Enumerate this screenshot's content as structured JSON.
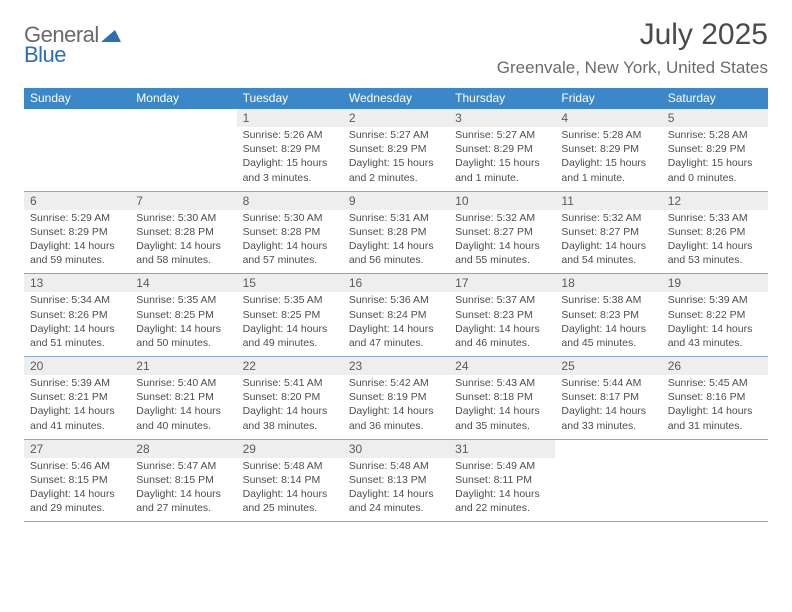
{
  "logo": {
    "general": "General",
    "blue": "Blue"
  },
  "title": "July 2025",
  "location": "Greenvale, New York, United States",
  "colors": {
    "header_bg": "#3c87c7",
    "header_text": "#ffffff",
    "daynum_bg": "#eeeeee",
    "text": "#4e4e4e",
    "divider": "#8aa8c4",
    "logo_gray": "#6a6a6a",
    "logo_blue": "#2b6fb5"
  },
  "day_names": [
    "Sunday",
    "Monday",
    "Tuesday",
    "Wednesday",
    "Thursday",
    "Friday",
    "Saturday"
  ],
  "weeks": [
    [
      {
        "num": "",
        "lines": []
      },
      {
        "num": "",
        "lines": []
      },
      {
        "num": "1",
        "lines": [
          "Sunrise: 5:26 AM",
          "Sunset: 8:29 PM",
          "Daylight: 15 hours",
          "and 3 minutes."
        ]
      },
      {
        "num": "2",
        "lines": [
          "Sunrise: 5:27 AM",
          "Sunset: 8:29 PM",
          "Daylight: 15 hours",
          "and 2 minutes."
        ]
      },
      {
        "num": "3",
        "lines": [
          "Sunrise: 5:27 AM",
          "Sunset: 8:29 PM",
          "Daylight: 15 hours",
          "and 1 minute."
        ]
      },
      {
        "num": "4",
        "lines": [
          "Sunrise: 5:28 AM",
          "Sunset: 8:29 PM",
          "Daylight: 15 hours",
          "and 1 minute."
        ]
      },
      {
        "num": "5",
        "lines": [
          "Sunrise: 5:28 AM",
          "Sunset: 8:29 PM",
          "Daylight: 15 hours",
          "and 0 minutes."
        ]
      }
    ],
    [
      {
        "num": "6",
        "lines": [
          "Sunrise: 5:29 AM",
          "Sunset: 8:29 PM",
          "Daylight: 14 hours",
          "and 59 minutes."
        ]
      },
      {
        "num": "7",
        "lines": [
          "Sunrise: 5:30 AM",
          "Sunset: 8:28 PM",
          "Daylight: 14 hours",
          "and 58 minutes."
        ]
      },
      {
        "num": "8",
        "lines": [
          "Sunrise: 5:30 AM",
          "Sunset: 8:28 PM",
          "Daylight: 14 hours",
          "and 57 minutes."
        ]
      },
      {
        "num": "9",
        "lines": [
          "Sunrise: 5:31 AM",
          "Sunset: 8:28 PM",
          "Daylight: 14 hours",
          "and 56 minutes."
        ]
      },
      {
        "num": "10",
        "lines": [
          "Sunrise: 5:32 AM",
          "Sunset: 8:27 PM",
          "Daylight: 14 hours",
          "and 55 minutes."
        ]
      },
      {
        "num": "11",
        "lines": [
          "Sunrise: 5:32 AM",
          "Sunset: 8:27 PM",
          "Daylight: 14 hours",
          "and 54 minutes."
        ]
      },
      {
        "num": "12",
        "lines": [
          "Sunrise: 5:33 AM",
          "Sunset: 8:26 PM",
          "Daylight: 14 hours",
          "and 53 minutes."
        ]
      }
    ],
    [
      {
        "num": "13",
        "lines": [
          "Sunrise: 5:34 AM",
          "Sunset: 8:26 PM",
          "Daylight: 14 hours",
          "and 51 minutes."
        ]
      },
      {
        "num": "14",
        "lines": [
          "Sunrise: 5:35 AM",
          "Sunset: 8:25 PM",
          "Daylight: 14 hours",
          "and 50 minutes."
        ]
      },
      {
        "num": "15",
        "lines": [
          "Sunrise: 5:35 AM",
          "Sunset: 8:25 PM",
          "Daylight: 14 hours",
          "and 49 minutes."
        ]
      },
      {
        "num": "16",
        "lines": [
          "Sunrise: 5:36 AM",
          "Sunset: 8:24 PM",
          "Daylight: 14 hours",
          "and 47 minutes."
        ]
      },
      {
        "num": "17",
        "lines": [
          "Sunrise: 5:37 AM",
          "Sunset: 8:23 PM",
          "Daylight: 14 hours",
          "and 46 minutes."
        ]
      },
      {
        "num": "18",
        "lines": [
          "Sunrise: 5:38 AM",
          "Sunset: 8:23 PM",
          "Daylight: 14 hours",
          "and 45 minutes."
        ]
      },
      {
        "num": "19",
        "lines": [
          "Sunrise: 5:39 AM",
          "Sunset: 8:22 PM",
          "Daylight: 14 hours",
          "and 43 minutes."
        ]
      }
    ],
    [
      {
        "num": "20",
        "lines": [
          "Sunrise: 5:39 AM",
          "Sunset: 8:21 PM",
          "Daylight: 14 hours",
          "and 41 minutes."
        ]
      },
      {
        "num": "21",
        "lines": [
          "Sunrise: 5:40 AM",
          "Sunset: 8:21 PM",
          "Daylight: 14 hours",
          "and 40 minutes."
        ]
      },
      {
        "num": "22",
        "lines": [
          "Sunrise: 5:41 AM",
          "Sunset: 8:20 PM",
          "Daylight: 14 hours",
          "and 38 minutes."
        ]
      },
      {
        "num": "23",
        "lines": [
          "Sunrise: 5:42 AM",
          "Sunset: 8:19 PM",
          "Daylight: 14 hours",
          "and 36 minutes."
        ]
      },
      {
        "num": "24",
        "lines": [
          "Sunrise: 5:43 AM",
          "Sunset: 8:18 PM",
          "Daylight: 14 hours",
          "and 35 minutes."
        ]
      },
      {
        "num": "25",
        "lines": [
          "Sunrise: 5:44 AM",
          "Sunset: 8:17 PM",
          "Daylight: 14 hours",
          "and 33 minutes."
        ]
      },
      {
        "num": "26",
        "lines": [
          "Sunrise: 5:45 AM",
          "Sunset: 8:16 PM",
          "Daylight: 14 hours",
          "and 31 minutes."
        ]
      }
    ],
    [
      {
        "num": "27",
        "lines": [
          "Sunrise: 5:46 AM",
          "Sunset: 8:15 PM",
          "Daylight: 14 hours",
          "and 29 minutes."
        ]
      },
      {
        "num": "28",
        "lines": [
          "Sunrise: 5:47 AM",
          "Sunset: 8:15 PM",
          "Daylight: 14 hours",
          "and 27 minutes."
        ]
      },
      {
        "num": "29",
        "lines": [
          "Sunrise: 5:48 AM",
          "Sunset: 8:14 PM",
          "Daylight: 14 hours",
          "and 25 minutes."
        ]
      },
      {
        "num": "30",
        "lines": [
          "Sunrise: 5:48 AM",
          "Sunset: 8:13 PM",
          "Daylight: 14 hours",
          "and 24 minutes."
        ]
      },
      {
        "num": "31",
        "lines": [
          "Sunrise: 5:49 AM",
          "Sunset: 8:11 PM",
          "Daylight: 14 hours",
          "and 22 minutes."
        ]
      },
      {
        "num": "",
        "lines": []
      },
      {
        "num": "",
        "lines": []
      }
    ]
  ]
}
